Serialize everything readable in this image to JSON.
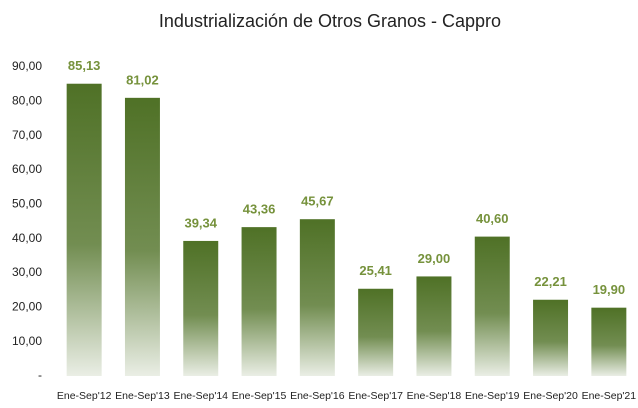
{
  "chart_data": {
    "type": "bar",
    "title": "Industrialización de Otros Granos - Cappro",
    "categories": [
      "Ene-Sep'12",
      "Ene-Sep'13",
      "Ene-Sep'14",
      "Ene-Sep'15",
      "Ene-Sep'16",
      "Ene-Sep'17",
      "Ene-Sep'18",
      "Ene-Sep'19",
      "Ene-Sep'20",
      "Ene-Sep'21"
    ],
    "values": [
      85.13,
      81.02,
      39.34,
      43.36,
      45.67,
      25.41,
      29.0,
      40.6,
      22.21,
      19.9
    ],
    "value_labels": [
      "85,13",
      "81,02",
      "39,34",
      "43,36",
      "45,67",
      "25,41",
      "29,00",
      "40,60",
      "22,21",
      "19,90"
    ],
    "color": "#4f7126",
    "ylim": [
      0,
      90
    ],
    "yticks": [
      {
        "value": 0,
        "label": "-"
      },
      {
        "value": 10,
        "label": "10,00"
      },
      {
        "value": 20,
        "label": "20,00"
      },
      {
        "value": 30,
        "label": "30,00"
      },
      {
        "value": 40,
        "label": "40,00"
      },
      {
        "value": 50,
        "label": "50,00"
      },
      {
        "value": 60,
        "label": "60,00"
      },
      {
        "value": 70,
        "label": "70,00"
      },
      {
        "value": 80,
        "label": "80,00"
      },
      {
        "value": 90,
        "label": "90,00"
      }
    ],
    "grid": false
  }
}
